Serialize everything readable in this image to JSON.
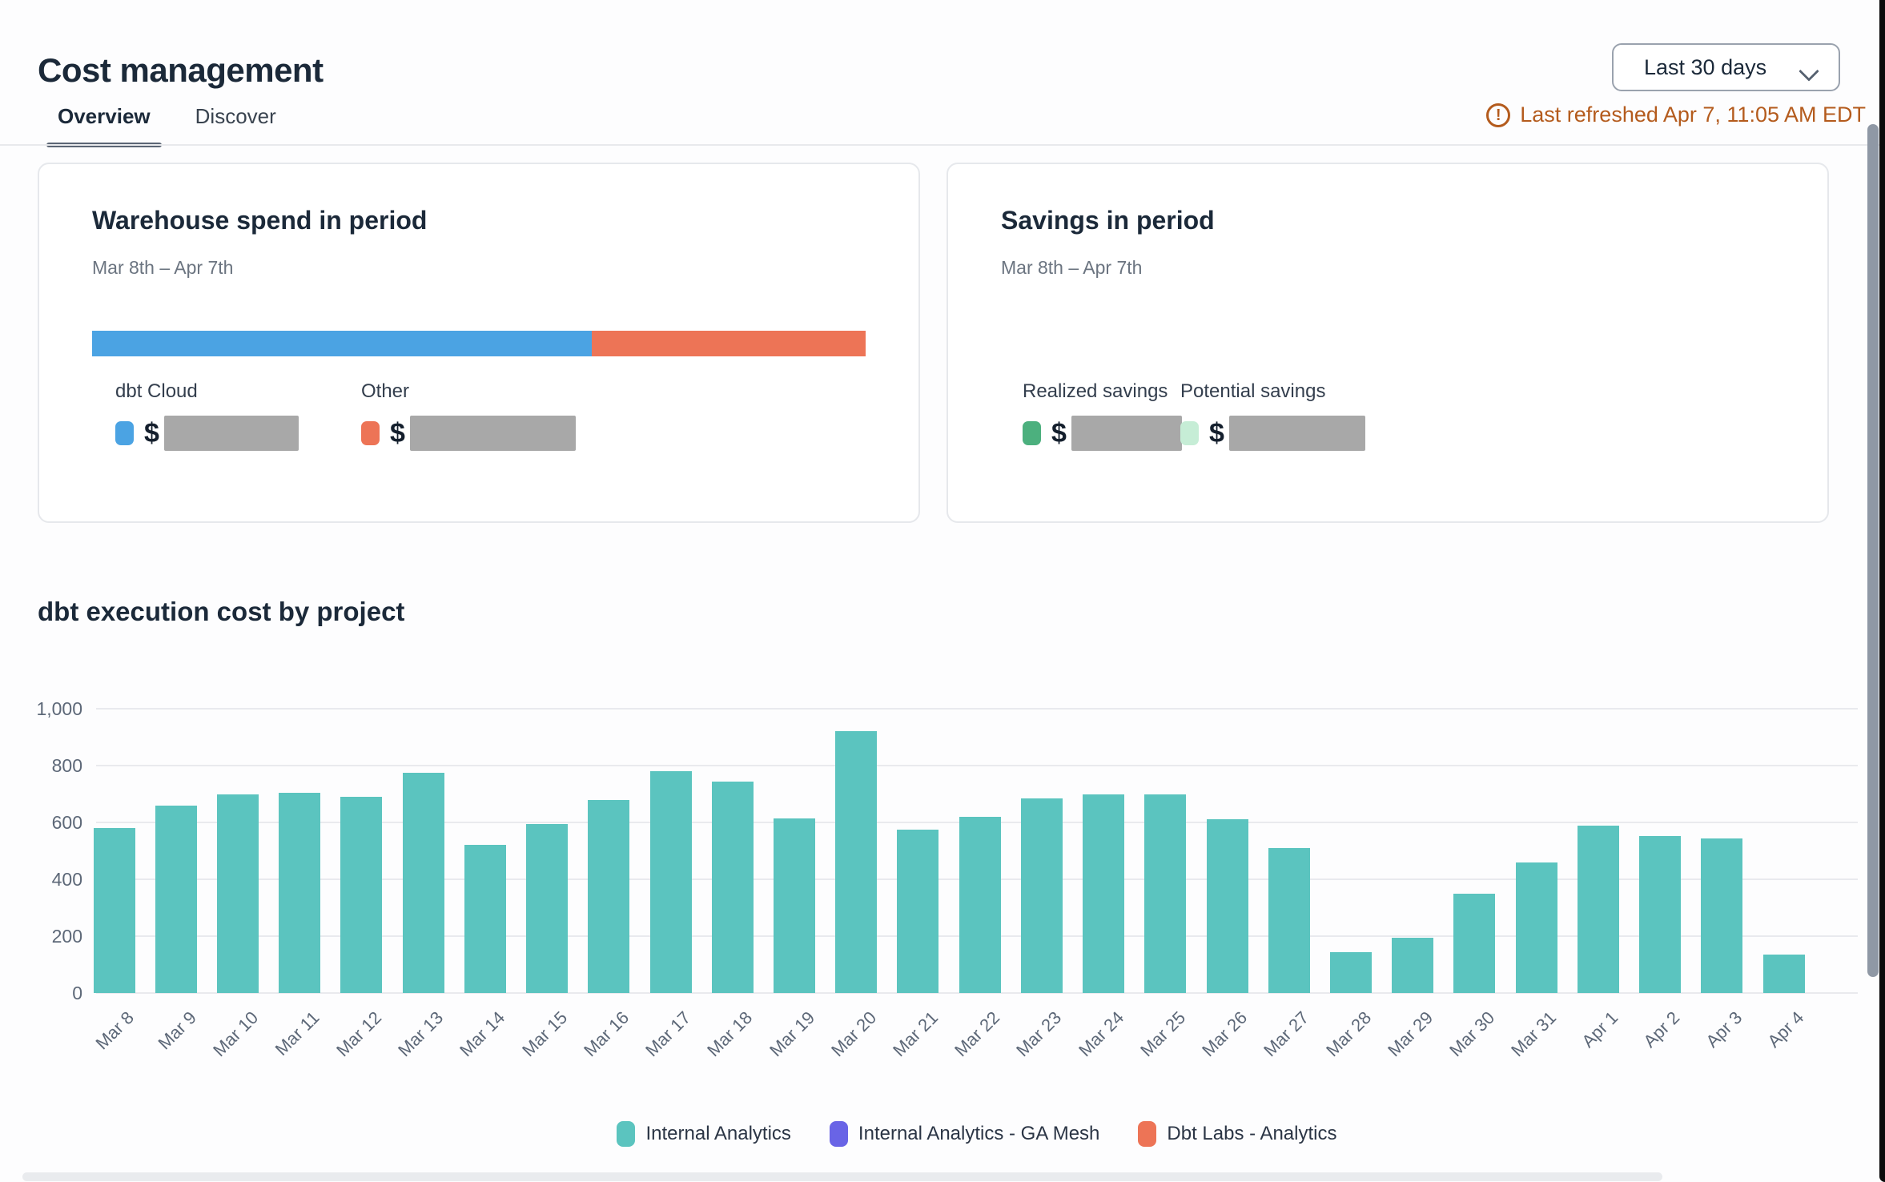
{
  "header": {
    "title": "Cost management",
    "date_range": {
      "selected": "Last 30 days"
    },
    "last_refreshed": "Last refreshed Apr 7, 11:05 AM EDT",
    "warn_icon_glyph": "!"
  },
  "tabs": [
    {
      "label": "Overview",
      "active": true
    },
    {
      "label": "Discover",
      "active": false
    }
  ],
  "cards": {
    "warehouse_spend": {
      "title": "Warehouse spend in period",
      "period": "Mar 8th – Apr 7th",
      "currency_symbol": "$",
      "items": [
        {
          "label": "dbt Cloud",
          "color": "#4BA3E3",
          "share_pct": 64.6,
          "value_hidden": true
        },
        {
          "label": "Other",
          "color": "#ED7456",
          "share_pct": 35.4,
          "value_hidden": true
        }
      ]
    },
    "savings": {
      "title": "Savings in period",
      "period": "Mar 8th – Apr 7th",
      "currency_symbol": "$",
      "items": [
        {
          "label": "Realized savings",
          "color": "#4CB07E",
          "value_hidden": true
        },
        {
          "label": "Potential savings",
          "color": "#C6EDD6",
          "value_hidden": true
        }
      ]
    }
  },
  "section_title": "dbt execution cost by project",
  "chart_data": {
    "type": "bar",
    "title": "dbt execution cost by project",
    "categories": [
      "Mar 8",
      "Mar 9",
      "Mar 10",
      "Mar 11",
      "Mar 12",
      "Mar 13",
      "Mar 14",
      "Mar 15",
      "Mar 16",
      "Mar 17",
      "Mar 18",
      "Mar 19",
      "Mar 20",
      "Mar 21",
      "Mar 22",
      "Mar 23",
      "Mar 24",
      "Mar 25",
      "Mar 26",
      "Mar 27",
      "Mar 28",
      "Mar 29",
      "Mar 30",
      "Mar 31",
      "Apr 1",
      "Apr 2",
      "Apr 3",
      "Apr 4"
    ],
    "series": [
      {
        "name": "Internal Analytics",
        "color": "#5BC4BF",
        "values": [
          580,
          660,
          700,
          705,
          690,
          775,
          520,
          595,
          680,
          780,
          745,
          615,
          920,
          575,
          620,
          685,
          700,
          700,
          612,
          510,
          145,
          195,
          350,
          460,
          588,
          552,
          545,
          135
        ]
      }
    ],
    "legend": [
      {
        "label": "Internal Analytics",
        "color": "#5BC4BF"
      },
      {
        "label": "Internal Analytics - GA Mesh",
        "color": "#6964E6"
      },
      {
        "label": "Dbt Labs - Analytics",
        "color": "#ED7456"
      }
    ],
    "xlabel": "",
    "ylabel": "",
    "ylim": [
      0,
      1000
    ],
    "yticks": [
      0,
      200,
      400,
      600,
      800,
      1000
    ],
    "ytick_labels": [
      "0",
      "200",
      "400",
      "600",
      "800",
      "1,000"
    ],
    "grid": true,
    "legend_position": "bottom"
  }
}
